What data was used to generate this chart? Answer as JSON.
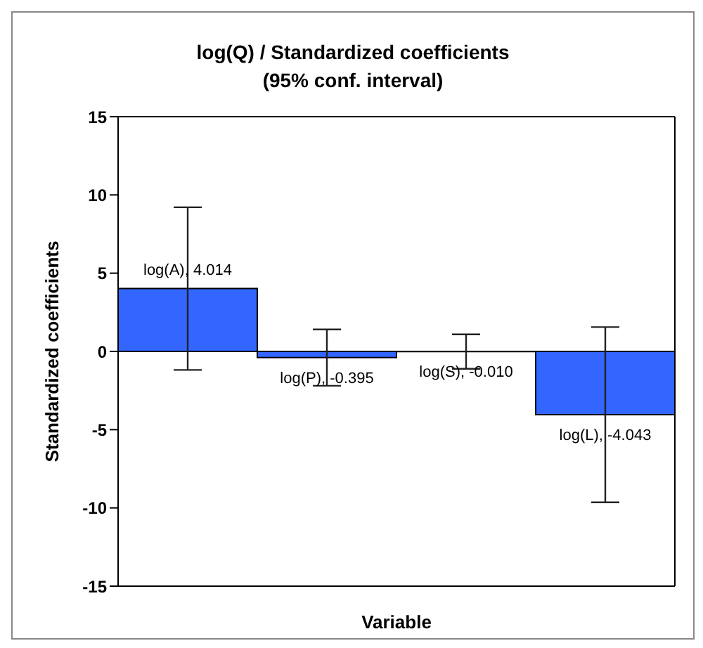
{
  "chart_data": {
    "type": "bar",
    "title": "log(Q) / Standardized coefficients",
    "subtitle": "(95% conf. interval)",
    "xlabel": "Variable",
    "ylabel": "Standardized coefficients",
    "categories": [
      null,
      null,
      null,
      null
    ],
    "values": [
      4.014,
      -0.395,
      -0.01,
      -4.043
    ],
    "value_labels": [
      "log(A), 4.014",
      "log(P), -0.395",
      "log(S), -0.010",
      "log(L), -4.043"
    ],
    "errors": [
      5.2,
      1.8,
      1.1,
      5.6
    ],
    "color": "#3366ff",
    "ylim": [
      -15,
      15
    ],
    "yticks": [
      -15,
      -10,
      -5,
      0,
      5,
      10,
      15
    ],
    "grid": false,
    "legend": false
  }
}
